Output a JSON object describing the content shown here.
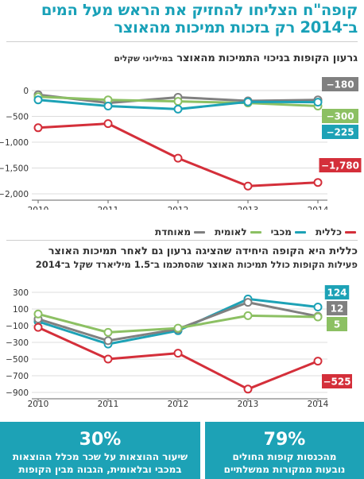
{
  "headline": {
    "line1": "קופה\"ח הצליחו להחזיק את הראש מעל המים",
    "line2": "ב־2014 רק בזכות תמיכות מהאוצר"
  },
  "chart1": {
    "title_main": "גרעון הקופות בניכוי התמיכות מהאוצר",
    "title_small": "במיליוני שקלים"
  },
  "legend": [
    {
      "name": "כללית",
      "color": "#d42f3a"
    },
    {
      "name": "מכבי",
      "color": "#1da2b6"
    },
    {
      "name": "לאומית",
      "color": "#8cc063"
    },
    {
      "name": "מאוחדת",
      "color": "#808080"
    }
  ],
  "chart2": {
    "title": "כללית היא הקופה היחידה שהציגה גרעון גם לאחר תמיכות האוצר",
    "note": "פעילות הקופות כולל תמיכות האוצר שהסתכמו ב־1.5 מיליארד שקל ב־2014"
  },
  "stats": [
    {
      "value": "79%",
      "line1": "מהכנסות קופות החולים",
      "line2": "נובעות ממקורות ממשלתיים"
    },
    {
      "value": "30%",
      "line1": "שיעור ההוצאות על שכר מכלל ההוצאות",
      "line2": "במכבי ובלאומית, הגבוה מבין הקופות"
    }
  ],
  "chart_data": [
    {
      "type": "line",
      "title": "גרעון הקופות בניכוי התמיכות מהאוצר",
      "ylabel": "במיליוני שקלים",
      "x": [
        2010,
        2011,
        2012,
        2013,
        2014
      ],
      "ylim": [
        -2000,
        0
      ],
      "yticks": [
        0,
        -500,
        -1000,
        -1500,
        -2000
      ],
      "series": [
        {
          "name": "מאוחדת",
          "color": "#808080",
          "values": [
            -80,
            -240,
            -130,
            -200,
            -180
          ],
          "end_label": "−180"
        },
        {
          "name": "לאומית",
          "color": "#8cc063",
          "values": [
            -120,
            -180,
            -210,
            -240,
            -300
          ],
          "end_label": "−300"
        },
        {
          "name": "מכבי",
          "color": "#1da2b6",
          "values": [
            -180,
            -300,
            -360,
            -220,
            -225
          ],
          "end_label": "−225"
        },
        {
          "name": "כללית",
          "color": "#d42f3a",
          "values": [
            -720,
            -640,
            -1310,
            -1850,
            -1780
          ],
          "end_label": "−1,780"
        }
      ],
      "grid": true
    },
    {
      "type": "line",
      "title": "כללית היא הקופה היחידה שהציגה גרעון גם לאחר תמיכות האוצר",
      "x": [
        2010,
        2011,
        2012,
        2013,
        2014
      ],
      "ylim": [
        -900,
        300
      ],
      "yticks": [
        300,
        100,
        -100,
        -300,
        -500,
        -700,
        -900
      ],
      "series": [
        {
          "name": "מכבי",
          "color": "#1da2b6",
          "values": [
            -50,
            -320,
            -160,
            220,
            124
          ],
          "end_label": "124"
        },
        {
          "name": "מאוחדת",
          "color": "#808080",
          "values": [
            -20,
            -280,
            -140,
            180,
            12
          ],
          "end_label": "12"
        },
        {
          "name": "לאומית",
          "color": "#8cc063",
          "values": [
            40,
            -180,
            -130,
            20,
            5
          ],
          "end_label": "5"
        },
        {
          "name": "כללית",
          "color": "#d42f3a",
          "values": [
            -120,
            -500,
            -430,
            -860,
            -525
          ],
          "end_label": "−525"
        }
      ],
      "grid": true
    }
  ]
}
